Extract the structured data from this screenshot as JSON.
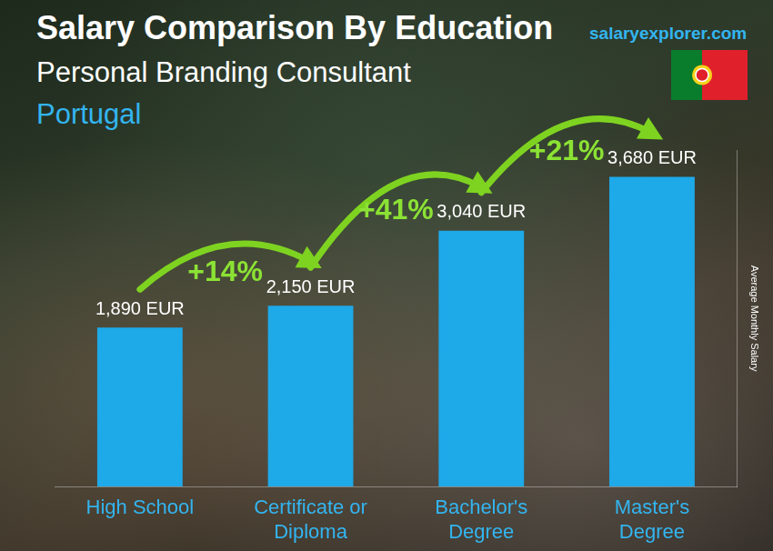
{
  "chart_data": {
    "type": "bar",
    "title": "Salary Comparison By Education",
    "subtitle": "Personal Branding Consultant",
    "location": "Portugal",
    "source": "salaryexplorer.com",
    "y_label": "Average Monthly Salary",
    "categories": [
      "High School",
      "Certificate or Diploma",
      "Bachelor's Degree",
      "Master's Degree"
    ],
    "values": [
      1890,
      2150,
      3040,
      3680
    ],
    "value_labels": [
      "1,890 EUR",
      "2,150 EUR",
      "3,040 EUR",
      "3,680 EUR"
    ],
    "annotations": [
      "+14%",
      "+41%",
      "+21%"
    ],
    "color": "#1ea9e8",
    "ylim": [
      0,
      4000
    ],
    "grid": false,
    "data_labels": true,
    "tick_labels": "x"
  }
}
